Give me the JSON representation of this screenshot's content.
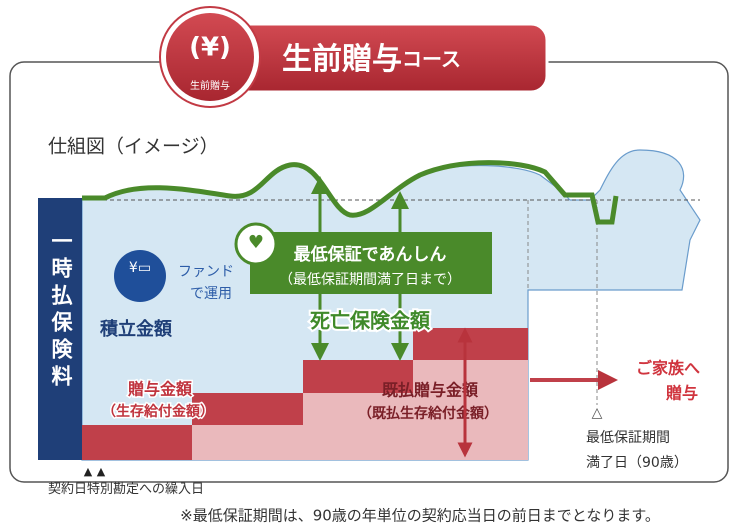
{
  "header": {
    "badge": "生前贈与",
    "title": "生前贈与",
    "title_suffix": "コース"
  },
  "diagram": {
    "caption": "仕組図（イメージ）",
    "premium": "一時払保険料",
    "fund": {
      "line1": "ファンド",
      "line2": "で運用",
      "label": "積立金額"
    },
    "guarantee": {
      "title": "最低保証であんしん",
      "note": "（最低保証期間満了日まで）"
    },
    "death_benefit": "死亡保険金額",
    "gift": {
      "line1": "贈与金額",
      "line2": "（生存給付金額）"
    },
    "paid_gift": {
      "line1": "既払贈与金額",
      "line2": "（既払生存給付金額）"
    },
    "family": {
      "line1": "ご家族へ",
      "line2": "贈与"
    },
    "maturity": {
      "line1": "最低保証期間",
      "line2": "満了日（90歳）"
    },
    "contract_date": "契約日",
    "transfer_date": "特別勘定への繰入日"
  },
  "footnote": "※最低保証期間は、90歳の年単位の契約応当日の前日までとなります。"
}
